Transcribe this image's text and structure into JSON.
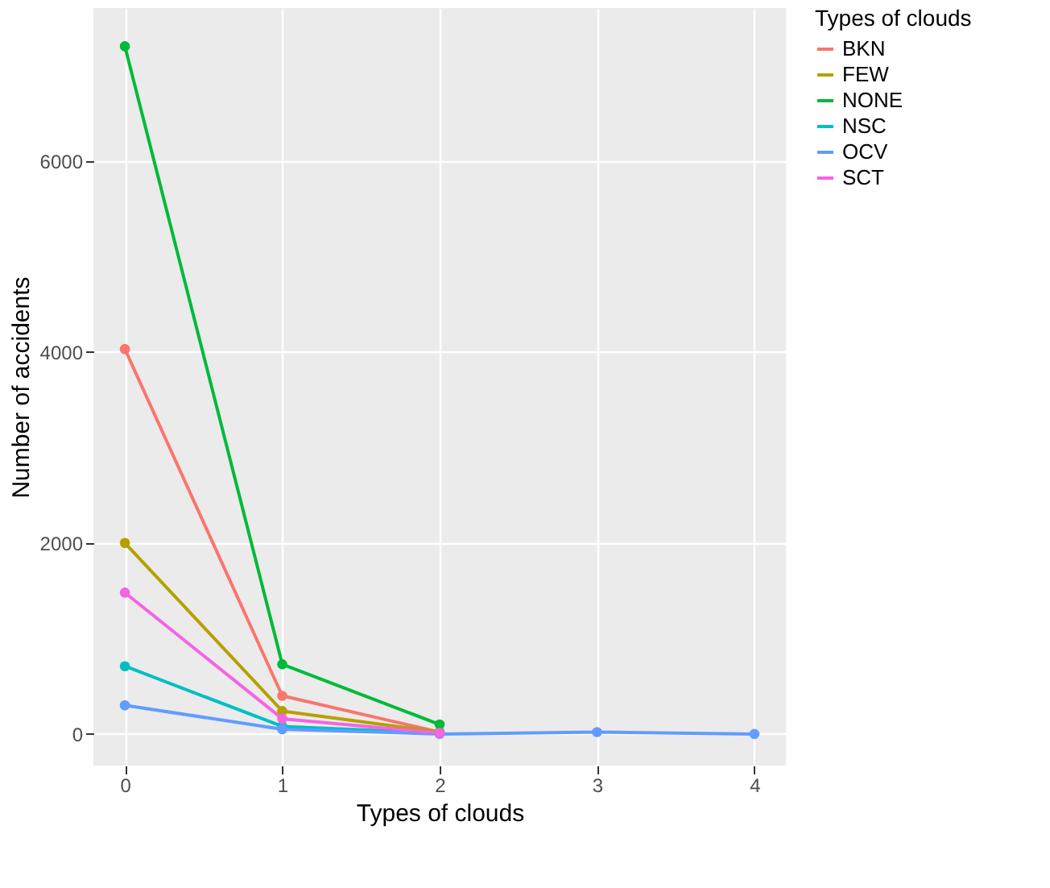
{
  "chart_data": {
    "type": "line",
    "xlabel": "Types of clouds",
    "ylabel": "Number of accidents",
    "legend_title": "Types of clouds",
    "legend": "right",
    "grid": true,
    "marker": "circle",
    "line_style": "solid",
    "xlim": [
      -0.2,
      4.2
    ],
    "xticks": [
      0,
      1,
      2,
      3,
      4
    ],
    "ylim": [
      -330,
      7600
    ],
    "yticks": [
      0,
      2000,
      4000,
      6000
    ],
    "series": [
      {
        "name": "BKN",
        "color": "#f8766d",
        "x": [
          0,
          1,
          2
        ],
        "values": [
          4030,
          400,
          20
        ]
      },
      {
        "name": "FEW",
        "color": "#b79f00",
        "x": [
          0,
          1,
          2
        ],
        "values": [
          2000,
          240,
          20
        ]
      },
      {
        "name": "NONE",
        "color": "#00ba38",
        "x": [
          0,
          1,
          2
        ],
        "values": [
          7200,
          730,
          100
        ]
      },
      {
        "name": "NSC",
        "color": "#00bfc4",
        "x": [
          0,
          1,
          2
        ],
        "values": [
          710,
          80,
          10
        ]
      },
      {
        "name": "OCV",
        "color": "#619cff",
        "x": [
          0,
          1,
          2,
          3,
          4
        ],
        "values": [
          300,
          50,
          0,
          20,
          0
        ]
      },
      {
        "name": "SCT",
        "color": "#f564e3",
        "x": [
          0,
          1,
          2
        ],
        "values": [
          1480,
          160,
          10
        ]
      }
    ]
  }
}
